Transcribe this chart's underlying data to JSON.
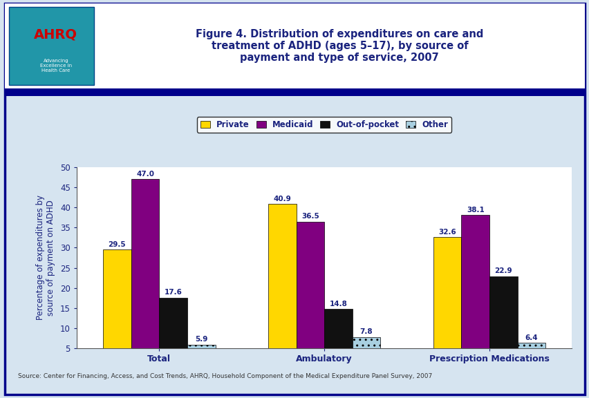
{
  "title": "Figure 4. Distribution of expenditures on care and\ntreatment of ADHD (ages 5–17), by source of\npayment and type of service, 2007",
  "ylabel": "Percentage of expenditures by\nsource of payment on ADHD",
  "source_text": "Source: Center for Financing, Access, and Cost Trends, AHRQ, Household Component of the Medical Expenditure Panel Survey, 2007",
  "categories": [
    "Total",
    "Ambulatory",
    "Prescription Medications"
  ],
  "series": {
    "Private": [
      29.5,
      40.9,
      32.6
    ],
    "Medicaid": [
      47.0,
      36.5,
      38.1
    ],
    "Out-of-pocket": [
      17.6,
      14.8,
      22.9
    ],
    "Other": [
      5.9,
      7.8,
      6.4
    ]
  },
  "colors": {
    "Private": "#FFD700",
    "Medicaid": "#800080",
    "Out-of-pocket": "#111111",
    "Other": "#a8cfe0"
  },
  "hatch_other": "..",
  "ylim": [
    5,
    50
  ],
  "yticks": [
    5,
    10,
    15,
    20,
    25,
    30,
    35,
    40,
    45,
    50
  ],
  "bar_width": 0.17,
  "title_color": "#1a237e",
  "axis_label_color": "#1a237e",
  "tick_label_color": "#1a237e",
  "category_label_color": "#1a237e",
  "legend_label_color": "#1a237e",
  "value_label_color": "#1a237e",
  "source_color": "#333333",
  "border_color": "#00008B",
  "chart_bg": "#ffffff",
  "outer_bg": "#d6e4f0",
  "header_bg": "#ffffff",
  "header_line_color": "#00008B",
  "logo_bg": "#2196a8",
  "logo_text": "AHRQ",
  "logo_subtext": "Advancing\nExcellence in\nHealth Care",
  "figsize": [
    8.53,
    5.76
  ],
  "dpi": 100
}
